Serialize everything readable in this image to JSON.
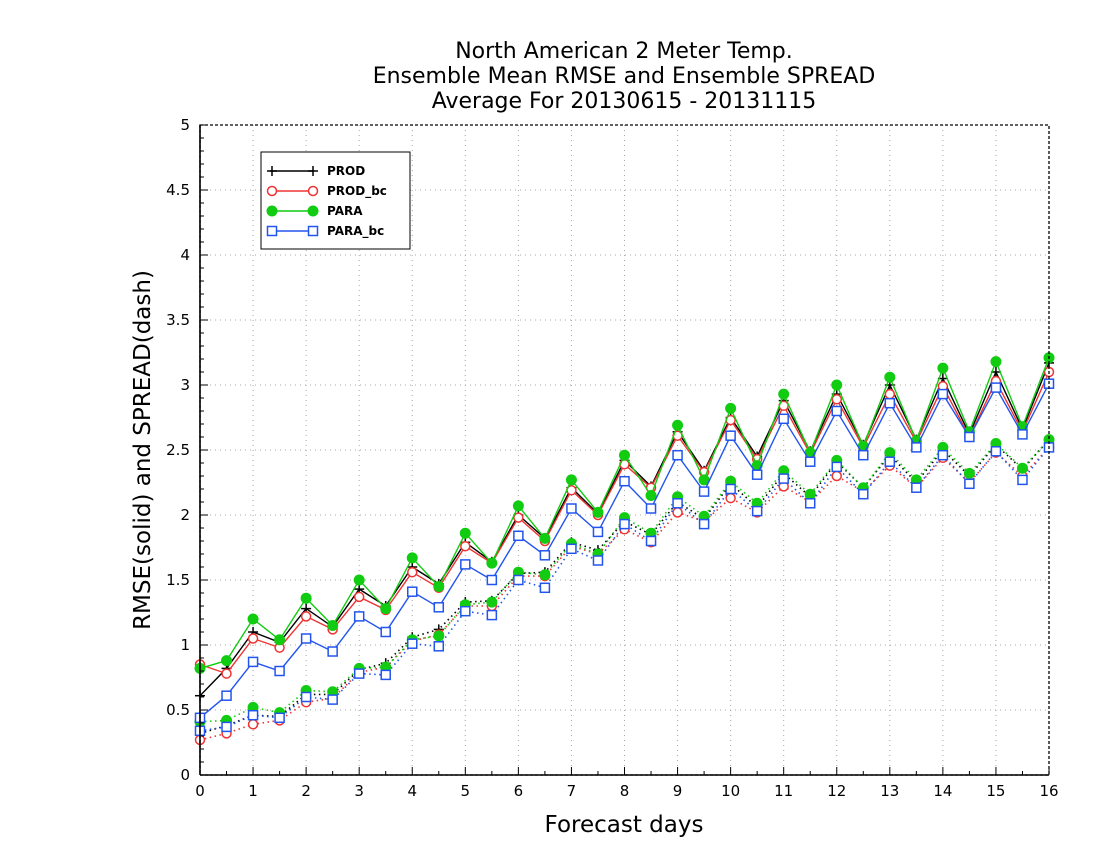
{
  "chart_data": {
    "type": "line",
    "title": [
      "North American 2 Meter Temp.",
      "Ensemble Mean RMSE and Ensemble SPREAD",
      "Average For 20130615 - 20131115"
    ],
    "xlabel": "Forecast days",
    "ylabel": "RMSE(solid) and SPREAD(dash)",
    "xlim": [
      0,
      16
    ],
    "ylim": [
      0,
      5
    ],
    "x_ticks": [
      0,
      1,
      2,
      3,
      4,
      5,
      6,
      7,
      8,
      9,
      10,
      11,
      12,
      13,
      14,
      15,
      16
    ],
    "y_ticks": [
      0,
      0.5,
      1,
      1.5,
      2,
      2.5,
      3,
      3.5,
      4,
      4.5,
      5
    ],
    "y_tick_labels": [
      "0",
      "0.5",
      "1",
      "1.5",
      "2",
      "2.5",
      "3",
      "3.5",
      "4",
      "4.5",
      "5"
    ],
    "grid": true,
    "legend_position": "top-left",
    "x": [
      0,
      0.5,
      1,
      1.5,
      2,
      2.5,
      3,
      3.5,
      4,
      4.5,
      5,
      5.5,
      6,
      6.5,
      7,
      7.5,
      8,
      8.5,
      9,
      9.5,
      10,
      10.5,
      11,
      11.5,
      12,
      12.5,
      13,
      13.5,
      14,
      14.5,
      15,
      15.5,
      16
    ],
    "series": [
      {
        "name": "PROD",
        "color": "#000000",
        "marker": "plus",
        "rmse": [
          0.61,
          0.82,
          1.1,
          1.02,
          1.28,
          1.14,
          1.43,
          1.3,
          1.6,
          1.47,
          1.79,
          1.64,
          2.0,
          1.82,
          2.21,
          2.01,
          2.42,
          2.22,
          2.64,
          2.34,
          2.75,
          2.45,
          2.88,
          2.49,
          2.93,
          2.54,
          3.0,
          2.58,
          3.05,
          2.62,
          3.1,
          2.66,
          3.17
        ],
        "spread": [
          0.32,
          0.38,
          0.46,
          0.45,
          0.62,
          0.62,
          0.81,
          0.86,
          1.06,
          1.12,
          1.33,
          1.34,
          1.55,
          1.56,
          1.79,
          1.73,
          1.95,
          1.85,
          2.1,
          1.97,
          2.24,
          2.06,
          2.32,
          2.14,
          2.41,
          2.21,
          2.46,
          2.25,
          2.5,
          2.3,
          2.54,
          2.35,
          2.58
        ]
      },
      {
        "name": "PROD_bc",
        "color": "#ee3333",
        "marker": "circle-open",
        "rmse": [
          0.85,
          0.78,
          1.05,
          0.98,
          1.22,
          1.12,
          1.37,
          1.27,
          1.56,
          1.44,
          1.76,
          1.63,
          1.98,
          1.8,
          2.19,
          2.0,
          2.39,
          2.21,
          2.61,
          2.33,
          2.73,
          2.43,
          2.84,
          2.47,
          2.89,
          2.52,
          2.93,
          2.56,
          2.99,
          2.6,
          3.03,
          2.64,
          3.1
        ],
        "spread": [
          0.27,
          0.32,
          0.39,
          0.42,
          0.56,
          0.59,
          0.79,
          0.83,
          1.03,
          1.08,
          1.3,
          1.3,
          1.53,
          1.53,
          1.76,
          1.7,
          1.89,
          1.79,
          2.02,
          1.95,
          2.13,
          2.02,
          2.22,
          2.1,
          2.3,
          2.18,
          2.38,
          2.21,
          2.44,
          2.25,
          2.48,
          2.3,
          2.52
        ]
      },
      {
        "name": "PARA",
        "color": "#11cc11",
        "marker": "circle-filled",
        "rmse": [
          0.82,
          0.88,
          1.2,
          1.04,
          1.36,
          1.15,
          1.5,
          1.28,
          1.67,
          1.45,
          1.86,
          1.63,
          2.07,
          1.82,
          2.27,
          2.02,
          2.46,
          2.15,
          2.69,
          2.27,
          2.82,
          2.38,
          2.93,
          2.48,
          3.0,
          2.53,
          3.06,
          2.57,
          3.13,
          2.64,
          3.18,
          2.68,
          3.21
        ],
        "spread": [
          0.41,
          0.42,
          0.52,
          0.48,
          0.65,
          0.64,
          0.82,
          0.83,
          1.04,
          1.07,
          1.31,
          1.33,
          1.56,
          1.54,
          1.78,
          1.7,
          1.98,
          1.86,
          2.14,
          1.99,
          2.26,
          2.09,
          2.34,
          2.16,
          2.42,
          2.21,
          2.48,
          2.27,
          2.52,
          2.32,
          2.55,
          2.36,
          2.58
        ]
      },
      {
        "name": "PARA_bc",
        "color": "#2255ee",
        "marker": "square-open",
        "rmse": [
          0.44,
          0.61,
          0.87,
          0.8,
          1.05,
          0.95,
          1.22,
          1.1,
          1.41,
          1.29,
          1.62,
          1.5,
          1.84,
          1.69,
          2.05,
          1.87,
          2.26,
          2.05,
          2.46,
          2.18,
          2.61,
          2.31,
          2.74,
          2.41,
          2.8,
          2.46,
          2.86,
          2.52,
          2.93,
          2.6,
          2.98,
          2.62,
          3.01
        ],
        "spread": [
          0.34,
          0.37,
          0.46,
          0.44,
          0.6,
          0.58,
          0.78,
          0.77,
          1.01,
          0.99,
          1.26,
          1.23,
          1.5,
          1.44,
          1.74,
          1.65,
          1.93,
          1.8,
          2.09,
          1.93,
          2.2,
          2.03,
          2.28,
          2.09,
          2.37,
          2.16,
          2.41,
          2.21,
          2.46,
          2.24,
          2.49,
          2.27,
          2.52
        ]
      }
    ]
  }
}
